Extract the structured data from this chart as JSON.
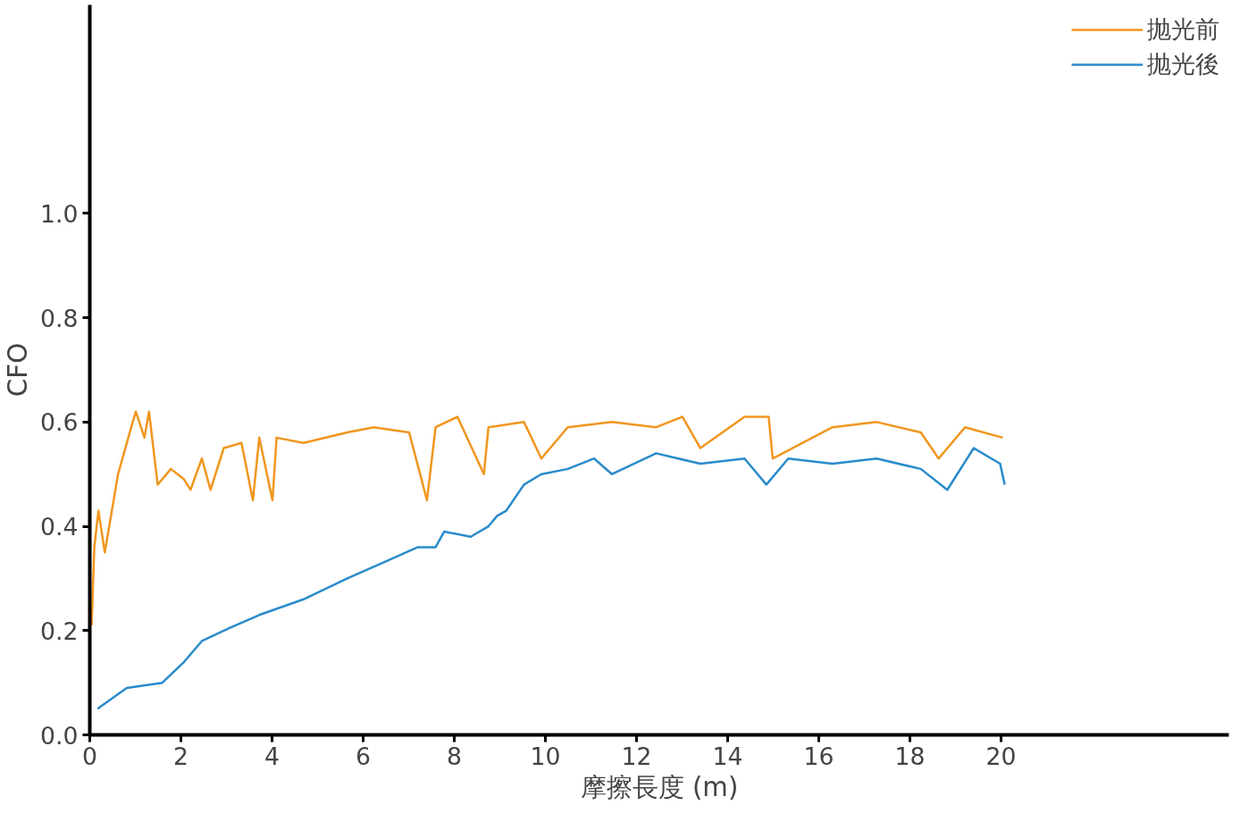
{
  "chart_data": {
    "type": "line",
    "xlabel": "摩擦長度 (m)",
    "ylabel": "CFO",
    "xlim": [
      0,
      25
    ],
    "ylim": [
      0,
      1.4
    ],
    "xticks": [
      0,
      2,
      4,
      6,
      8,
      10,
      12,
      14,
      16,
      18,
      20
    ],
    "yticks": [
      {
        "value": 0,
        "label": "0.0"
      },
      0.2,
      0.4,
      0.6,
      0.8,
      {
        "value": 1,
        "label": "1.0"
      }
    ],
    "grid": false,
    "legend": "top right",
    "line_style": "solid",
    "marker": "none",
    "series": [
      {
        "name": "抛光前",
        "color": "#f0961e",
        "x": [
          0.04,
          0.1,
          0.19,
          0.33,
          0.62,
          0.91,
          1.01,
          1.2,
          1.3,
          1.49,
          1.78,
          2.07,
          2.21,
          2.46,
          2.65,
          2.94,
          3.33,
          3.58,
          3.72,
          4.01,
          4.1,
          4.69,
          5.65,
          6.23,
          7.01,
          7.4,
          7.59,
          8.07,
          8.65,
          8.75,
          9.53,
          9.91,
          10.49,
          11.46,
          12.43,
          13.01,
          13.4,
          14.37,
          14.9,
          14.99,
          16.3,
          17.27,
          18.24,
          18.63,
          19.21,
          20.04
        ],
        "values": [
          0.21,
          0.36,
          0.43,
          0.35,
          0.5,
          0.59,
          0.62,
          0.57,
          0.62,
          0.48,
          0.51,
          0.49,
          0.47,
          0.53,
          0.47,
          0.55,
          0.56,
          0.45,
          0.57,
          0.45,
          0.57,
          0.56,
          0.58,
          0.59,
          0.58,
          0.45,
          0.59,
          0.61,
          0.5,
          0.59,
          0.6,
          0.53,
          0.59,
          0.6,
          0.59,
          0.61,
          0.55,
          0.61,
          0.61,
          0.53,
          0.59,
          0.6,
          0.58,
          0.53,
          0.59,
          0.57
        ]
      },
      {
        "name": "抛光後",
        "color": "#2a8bcb",
        "x": [
          0.17,
          0.81,
          1.59,
          2.07,
          2.46,
          2.94,
          3.72,
          4.69,
          5.65,
          6.43,
          7.2,
          7.59,
          7.78,
          8.36,
          8.75,
          8.94,
          9.14,
          9.53,
          9.91,
          10.49,
          11.07,
          11.46,
          12.43,
          13.4,
          14.37,
          14.85,
          15.33,
          16.3,
          17.27,
          18.24,
          18.82,
          19.4,
          19.98,
          20.08
        ],
        "values": [
          0.05,
          0.09,
          0.1,
          0.14,
          0.18,
          0.2,
          0.23,
          0.26,
          0.3,
          0.33,
          0.36,
          0.36,
          0.39,
          0.38,
          0.4,
          0.42,
          0.43,
          0.48,
          0.5,
          0.51,
          0.53,
          0.5,
          0.54,
          0.52,
          0.53,
          0.48,
          0.53,
          0.52,
          0.53,
          0.51,
          0.47,
          0.55,
          0.52,
          0.48
        ]
      }
    ]
  }
}
